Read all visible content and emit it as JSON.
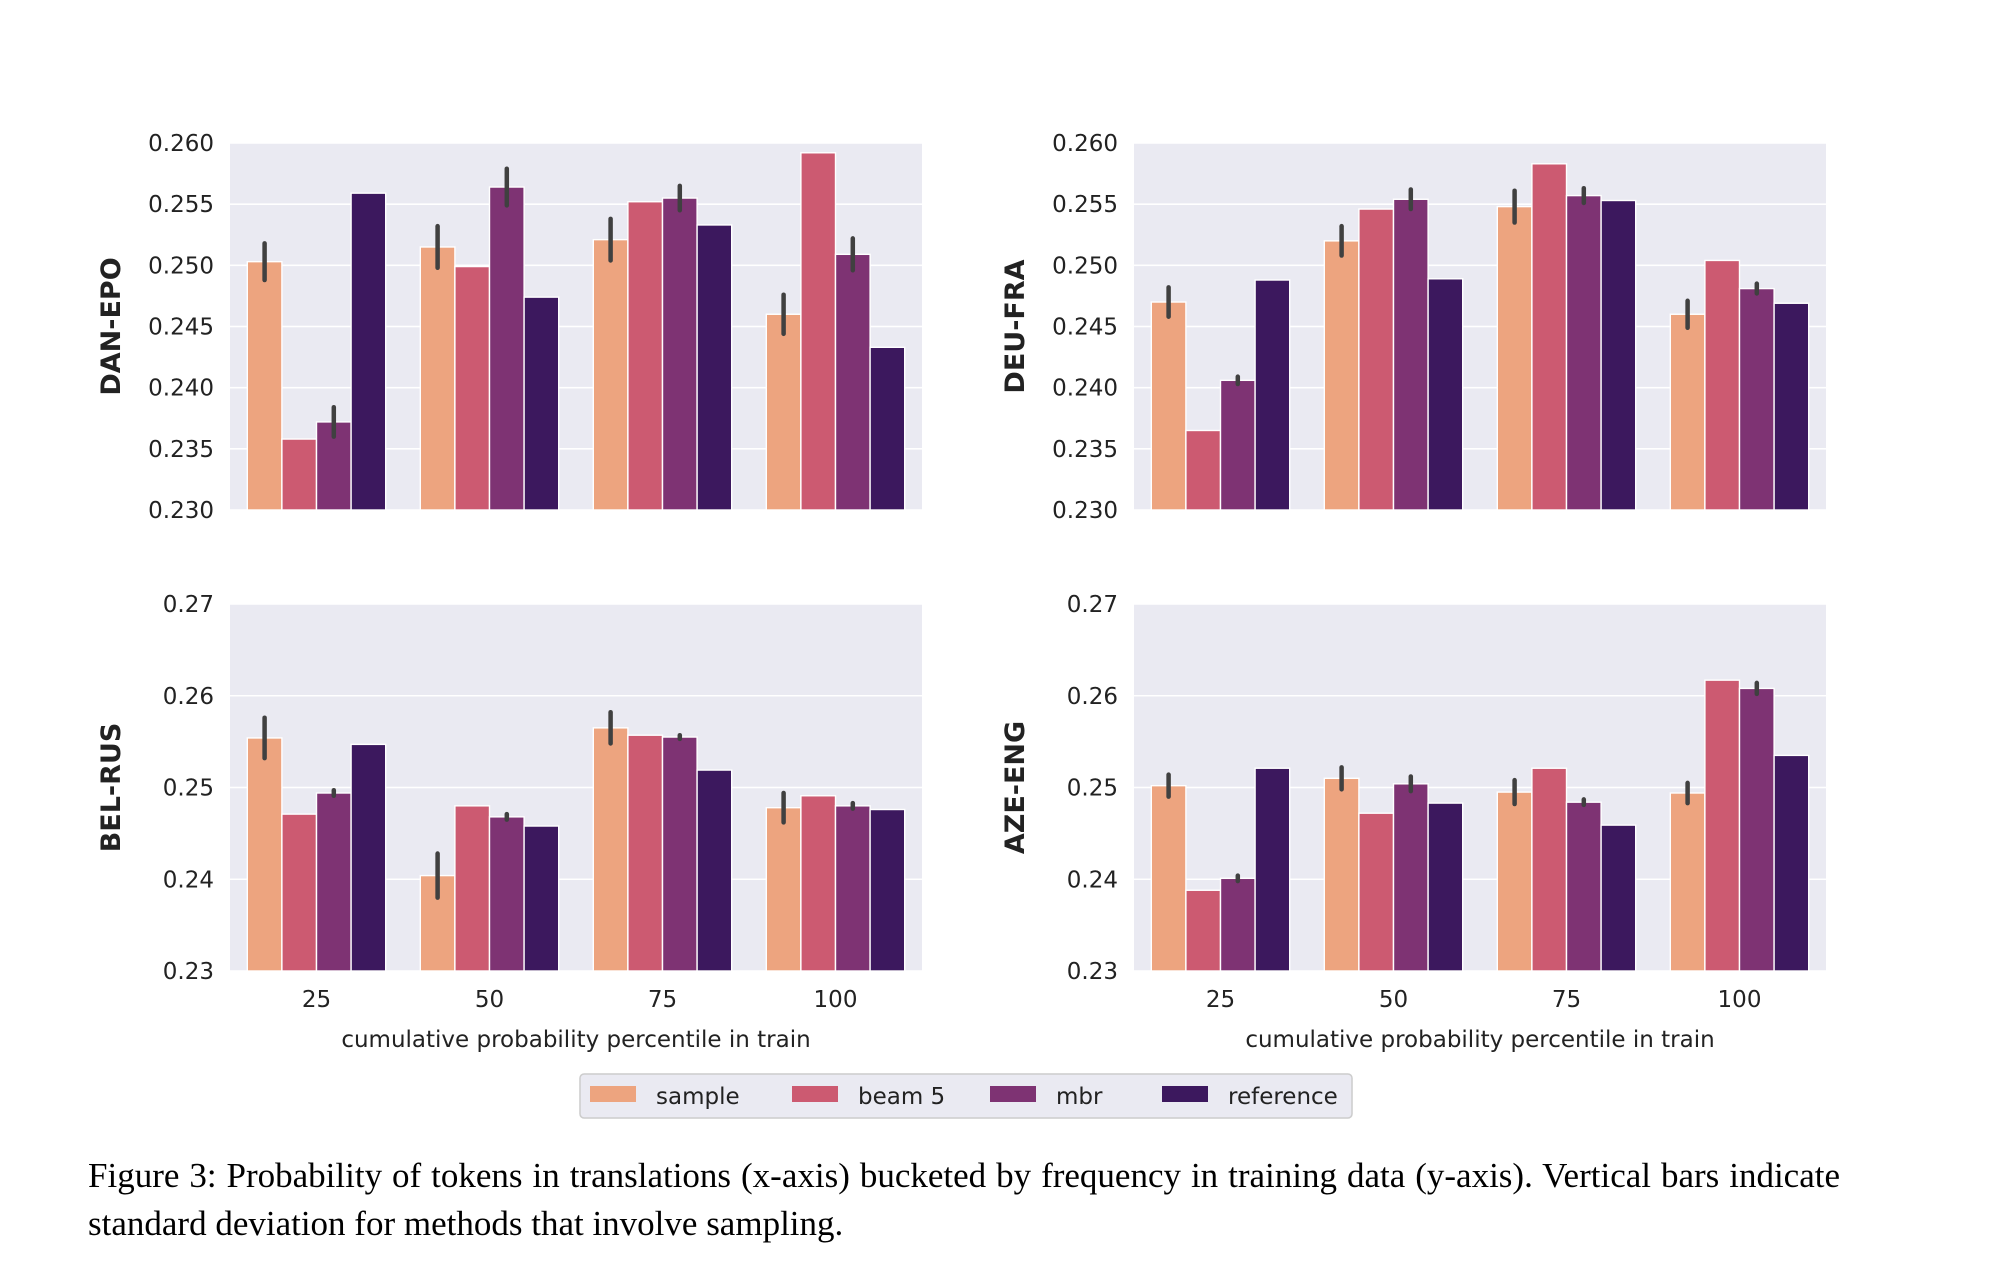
{
  "colors": {
    "sample": "#eda47f",
    "beam 5": "#cc5a71",
    "mbr": "#7e3373",
    "reference": "#3c185e",
    "panel_bg": "#eaeaf2",
    "grid": "#ffffff",
    "errorbar": "#404040"
  },
  "legend": {
    "position": "bottom-center",
    "entries": [
      "sample",
      "beam 5",
      "mbr",
      "reference"
    ]
  },
  "caption": "Figure 3: Probability of tokens in translations (x-axis) bucketed by frequency in training data (y-axis). Vertical bars indicate standard deviation for methods that involve sampling.",
  "chart_data": [
    {
      "type": "bar",
      "ylabel": "DAN-EPO",
      "xlabel": "",
      "categories": [
        "25",
        "50",
        "75",
        "100"
      ],
      "ylim": [
        0.23,
        0.26
      ],
      "yticks": [
        "0.230",
        "0.235",
        "0.240",
        "0.245",
        "0.250",
        "0.255",
        "0.260"
      ],
      "grid": true,
      "series": [
        {
          "name": "sample",
          "values": [
            0.2503,
            0.2515,
            0.2521,
            0.246
          ],
          "err": [
            0.0015,
            0.0017,
            0.0017,
            0.0016
          ]
        },
        {
          "name": "beam 5",
          "values": [
            0.2358,
            0.2499,
            0.2552,
            0.2592
          ],
          "err": null
        },
        {
          "name": "mbr",
          "values": [
            0.2372,
            0.2564,
            0.2555,
            0.2509
          ],
          "err": [
            0.0012,
            0.0015,
            0.001,
            0.0013
          ]
        },
        {
          "name": "reference",
          "values": [
            0.2559,
            0.2474,
            0.2533,
            0.2433
          ],
          "err": null
        }
      ]
    },
    {
      "type": "bar",
      "ylabel": "DEU-FRA",
      "xlabel": "",
      "categories": [
        "25",
        "50",
        "75",
        "100"
      ],
      "ylim": [
        0.23,
        0.26
      ],
      "yticks": [
        "0.230",
        "0.235",
        "0.240",
        "0.245",
        "0.250",
        "0.255",
        "0.260"
      ],
      "grid": true,
      "series": [
        {
          "name": "sample",
          "values": [
            0.247,
            0.252,
            0.2548,
            0.246
          ],
          "err": [
            0.0012,
            0.0012,
            0.0013,
            0.0011
          ]
        },
        {
          "name": "beam 5",
          "values": [
            0.2365,
            0.2546,
            0.2583,
            0.2504
          ],
          "err": null
        },
        {
          "name": "mbr",
          "values": [
            0.2406,
            0.2554,
            0.2557,
            0.2481
          ],
          "err": [
            0.0003,
            0.0008,
            0.0006,
            0.0004
          ]
        },
        {
          "name": "reference",
          "values": [
            0.2488,
            0.2489,
            0.2553,
            0.2469
          ],
          "err": null
        }
      ]
    },
    {
      "type": "bar",
      "ylabel": "BEL-RUS",
      "xlabel": "cumulative probability percentile in train",
      "categories": [
        "25",
        "50",
        "75",
        "100"
      ],
      "ylim": [
        0.23,
        0.27
      ],
      "yticks": [
        "0.23",
        "0.24",
        "0.25",
        "0.26",
        "0.27"
      ],
      "grid": true,
      "series": [
        {
          "name": "sample",
          "values": [
            0.2554,
            0.2404,
            0.2565,
            0.2478
          ],
          "err": [
            0.0022,
            0.0024,
            0.0017,
            0.0016
          ]
        },
        {
          "name": "beam 5",
          "values": [
            0.2471,
            0.248,
            0.2557,
            0.2491
          ],
          "err": null
        },
        {
          "name": "mbr",
          "values": [
            0.2494,
            0.2468,
            0.2555,
            0.248
          ],
          "err": [
            0.0003,
            0.0003,
            0.0002,
            0.0003
          ]
        },
        {
          "name": "reference",
          "values": [
            0.2547,
            0.2458,
            0.2519,
            0.2476
          ],
          "err": null
        }
      ]
    },
    {
      "type": "bar",
      "ylabel": "AZE-ENG",
      "xlabel": "cumulative probability percentile in train",
      "categories": [
        "25",
        "50",
        "75",
        "100"
      ],
      "ylim": [
        0.23,
        0.27
      ],
      "yticks": [
        "0.23",
        "0.24",
        "0.25",
        "0.26",
        "0.27"
      ],
      "grid": true,
      "series": [
        {
          "name": "sample",
          "values": [
            0.2502,
            0.251,
            0.2495,
            0.2494
          ],
          "err": [
            0.0012,
            0.0012,
            0.0013,
            0.0011
          ]
        },
        {
          "name": "beam 5",
          "values": [
            0.2388,
            0.2472,
            0.2521,
            0.2617
          ],
          "err": null
        },
        {
          "name": "mbr",
          "values": [
            0.2401,
            0.2504,
            0.2484,
            0.2608
          ],
          "err": [
            0.0003,
            0.0008,
            0.0003,
            0.0006
          ]
        },
        {
          "name": "reference",
          "values": [
            0.2521,
            0.2483,
            0.2459,
            0.2535
          ],
          "err": null
        }
      ]
    }
  ]
}
